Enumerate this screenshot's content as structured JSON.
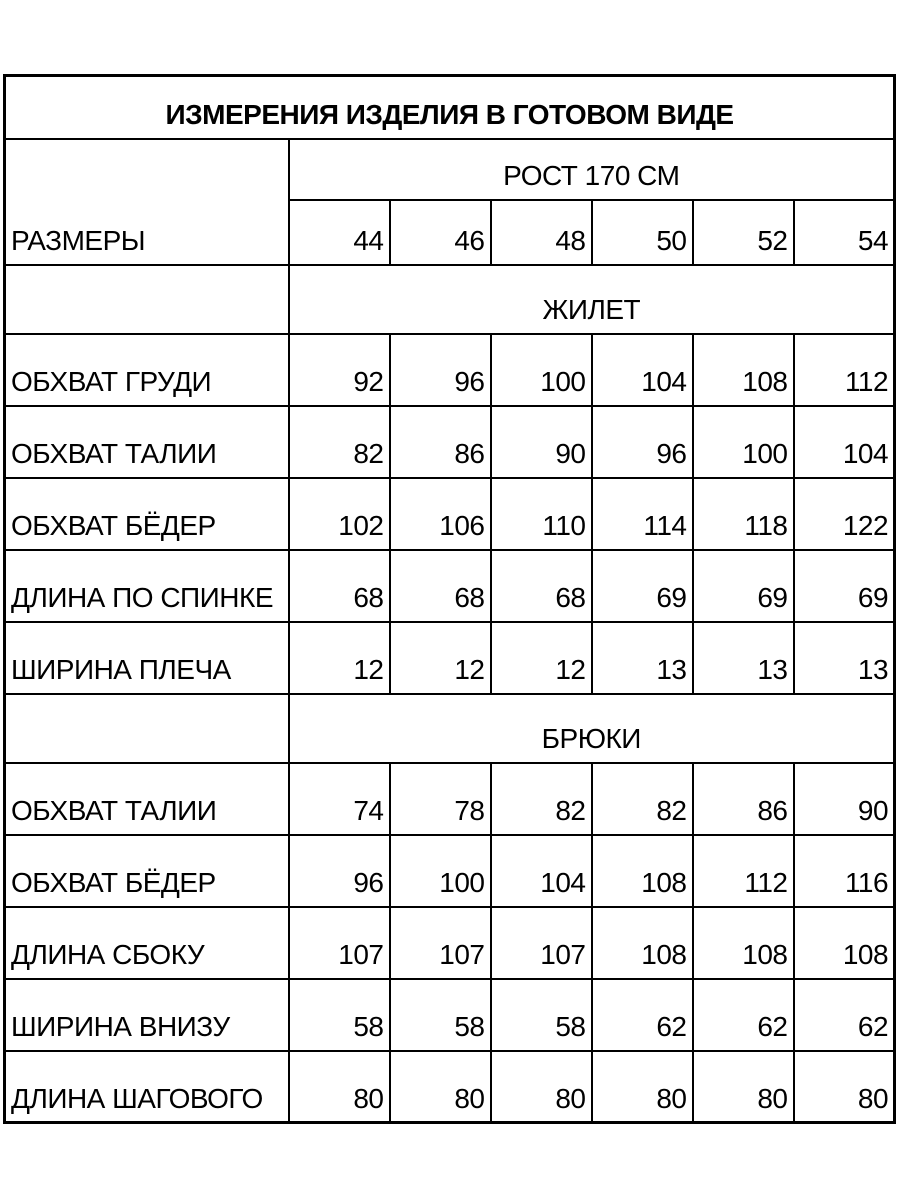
{
  "table": {
    "title": "ИЗМЕРЕНИЯ ИЗДЕЛИЯ В ГОТОВОМ ВИДЕ",
    "height_header": "РОСТ 170 СМ",
    "sizes_label": "РАЗМЕРЫ",
    "sizes": [
      "44",
      "46",
      "48",
      "50",
      "52",
      "54"
    ],
    "sections": [
      {
        "name": "ЖИЛЕТ",
        "rows": [
          {
            "label": "ОБХВАТ ГРУДИ",
            "values": [
              "92",
              "96",
              "100",
              "104",
              "108",
              "112"
            ]
          },
          {
            "label": "ОБХВАТ ТАЛИИ",
            "values": [
              "82",
              "86",
              "90",
              "96",
              "100",
              "104"
            ]
          },
          {
            "label": "ОБХВАТ БЁДЕР",
            "values": [
              "102",
              "106",
              "110",
              "114",
              "118",
              "122"
            ]
          },
          {
            "label": "ДЛИНА ПО СПИНКЕ",
            "values": [
              "68",
              "68",
              "68",
              "69",
              "69",
              "69"
            ]
          },
          {
            "label": "ШИРИНА ПЛЕЧА",
            "values": [
              "12",
              "12",
              "12",
              "13",
              "13",
              "13"
            ]
          }
        ]
      },
      {
        "name": "БРЮКИ",
        "rows": [
          {
            "label": "ОБХВАТ ТАЛИИ",
            "values": [
              "74",
              "78",
              "82",
              "82",
              "86",
              "90"
            ]
          },
          {
            "label": "ОБХВАТ БЁДЕР",
            "values": [
              "96",
              "100",
              "104",
              "108",
              "112",
              "116"
            ]
          },
          {
            "label": "ДЛИНА СБОКУ",
            "values": [
              "107",
              "107",
              "107",
              "108",
              "108",
              "108"
            ]
          },
          {
            "label": "ШИРИНА ВНИЗУ",
            "values": [
              "58",
              "58",
              "58",
              "62",
              "62",
              "62"
            ]
          },
          {
            "label": "ДЛИНА ШАГОВОГО",
            "values": [
              "80",
              "80",
              "80",
              "80",
              "80",
              "80"
            ]
          }
        ]
      }
    ]
  }
}
